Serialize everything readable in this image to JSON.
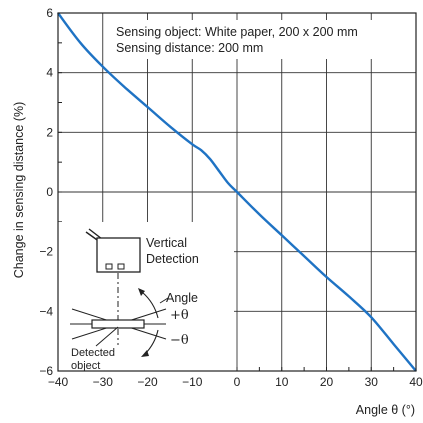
{
  "chart_data": {
    "type": "line",
    "title": "",
    "xlabel": "Angle θ (°)",
    "ylabel": "Change in sensing distance  (%)",
    "xlim": [
      -40,
      40
    ],
    "ylim": [
      -6,
      6
    ],
    "x_ticks": [
      "−40",
      "−30",
      "−20",
      "−10",
      "0",
      "10",
      "20",
      "30",
      "40"
    ],
    "y_ticks": [
      "6",
      "4",
      "2",
      "0",
      "−2",
      "−4",
      "−6"
    ],
    "grid": true,
    "line_color": "#1f73c4",
    "series": [
      {
        "x": [
          -40,
          -35,
          -30,
          -25,
          -20,
          -15,
          -10,
          -8,
          -6,
          -4,
          -2,
          0,
          5,
          10,
          15,
          20,
          25,
          30,
          35,
          40
        ],
        "y": [
          6.0,
          5.0,
          4.2,
          3.5,
          2.85,
          2.2,
          1.6,
          1.4,
          1.1,
          0.7,
          0.3,
          0.0,
          -0.75,
          -1.45,
          -2.15,
          -2.85,
          -3.5,
          -4.2,
          -5.1,
          -6.0
        ]
      }
    ],
    "annotations": {
      "line1": "Sensing object: White paper, 200 x 200 mm",
      "line2": "Sensing distance: 200 mm"
    }
  },
  "diagram": {
    "vertical_line1": "Vertical",
    "vertical_line2": "Detection",
    "angle_label": "Angle",
    "plus_theta": "+θ",
    "minus_theta": "−θ",
    "detected_line1": "Detected",
    "detected_line2": "object"
  }
}
